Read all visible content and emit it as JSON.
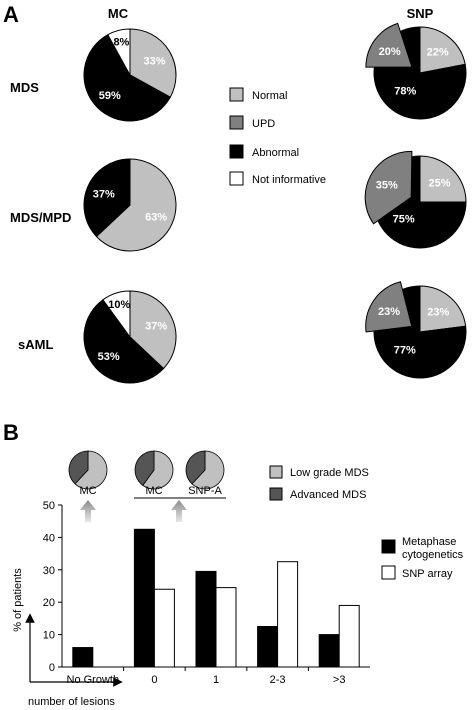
{
  "panel_a": {
    "panel_label": "A",
    "column_titles": [
      "MC",
      "SNP"
    ],
    "row_labels": [
      "MDS",
      "MDS/MPD",
      "sAML"
    ],
    "legend": [
      {
        "label": "Normal",
        "color": "#c0c0c0"
      },
      {
        "label": "UPD",
        "color": "#808080"
      },
      {
        "label": "Abnormal",
        "color": "#000000"
      },
      {
        "label": "Not informative",
        "color": "#ffffff"
      }
    ]
  },
  "panel_b": {
    "panel_label": "B",
    "pie_legend": [
      {
        "label": "Low grade MDS",
        "color": "#c0c0c0"
      },
      {
        "label": "Advanced MDS",
        "color": "#555555"
      }
    ],
    "pie_labels": [
      "MC",
      "MC",
      "SNP-A"
    ],
    "pie_values_low_grade_fraction": [
      0.62,
      0.6,
      0.62
    ],
    "bar_legend": [
      {
        "label": "Metaphase cytogenetics",
        "color": "#000000"
      },
      {
        "label": "SNP array",
        "color": "#ffffff"
      }
    ]
  },
  "chart_data": [
    {
      "type": "pie",
      "row": "MDS",
      "column": "MC",
      "slices": [
        {
          "name": "Normal",
          "value": 33,
          "label": "33%"
        },
        {
          "name": "Abnormal",
          "value": 59,
          "label": "59%"
        },
        {
          "name": "Not informative",
          "value": 8,
          "label": "8%"
        }
      ]
    },
    {
      "type": "pie",
      "row": "MDS",
      "column": "SNP",
      "slices": [
        {
          "name": "Normal",
          "value": 22,
          "label": "22%"
        },
        {
          "name": "Abnormal",
          "value": 78,
          "label": "78%"
        },
        {
          "name": "UPD",
          "value": 20,
          "label": "20%",
          "exploded": true
        }
      ]
    },
    {
      "type": "pie",
      "row": "MDS/MPD",
      "column": "MC",
      "slices": [
        {
          "name": "Normal",
          "value": 63,
          "label": "63%"
        },
        {
          "name": "Abnormal",
          "value": 37,
          "label": "37%"
        }
      ]
    },
    {
      "type": "pie",
      "row": "MDS/MPD",
      "column": "SNP",
      "slices": [
        {
          "name": "Normal",
          "value": 25,
          "label": "25%"
        },
        {
          "name": "Abnormal",
          "value": 75,
          "label": "75%"
        },
        {
          "name": "UPD",
          "value": 35,
          "label": "35%",
          "exploded": true
        }
      ]
    },
    {
      "type": "pie",
      "row": "sAML",
      "column": "MC",
      "slices": [
        {
          "name": "Normal",
          "value": 37,
          "label": "37%"
        },
        {
          "name": "Abnormal",
          "value": 53,
          "label": "53%"
        },
        {
          "name": "Not informative",
          "value": 10,
          "label": "10%"
        }
      ]
    },
    {
      "type": "pie",
      "row": "sAML",
      "column": "SNP",
      "slices": [
        {
          "name": "Normal",
          "value": 23,
          "label": "23%"
        },
        {
          "name": "Abnormal",
          "value": 77,
          "label": "77%"
        },
        {
          "name": "UPD",
          "value": 23,
          "label": "23%",
          "exploded": true
        }
      ]
    },
    {
      "type": "bar",
      "categories": [
        "No Growth",
        "0",
        "1",
        "2-3",
        ">3"
      ],
      "series": [
        {
          "name": "Metaphase cytogenetics",
          "values": [
            6,
            42.5,
            29.5,
            12.5,
            10
          ]
        },
        {
          "name": "SNP array",
          "values": [
            null,
            24,
            24.5,
            32.5,
            19
          ]
        }
      ],
      "xlabel": "number of lesions",
      "ylabel": "% of patients",
      "ylim": [
        0,
        50
      ],
      "yticks": [
        0,
        10,
        20,
        30,
        40,
        50
      ],
      "grid": false,
      "legend_position": "right"
    }
  ]
}
